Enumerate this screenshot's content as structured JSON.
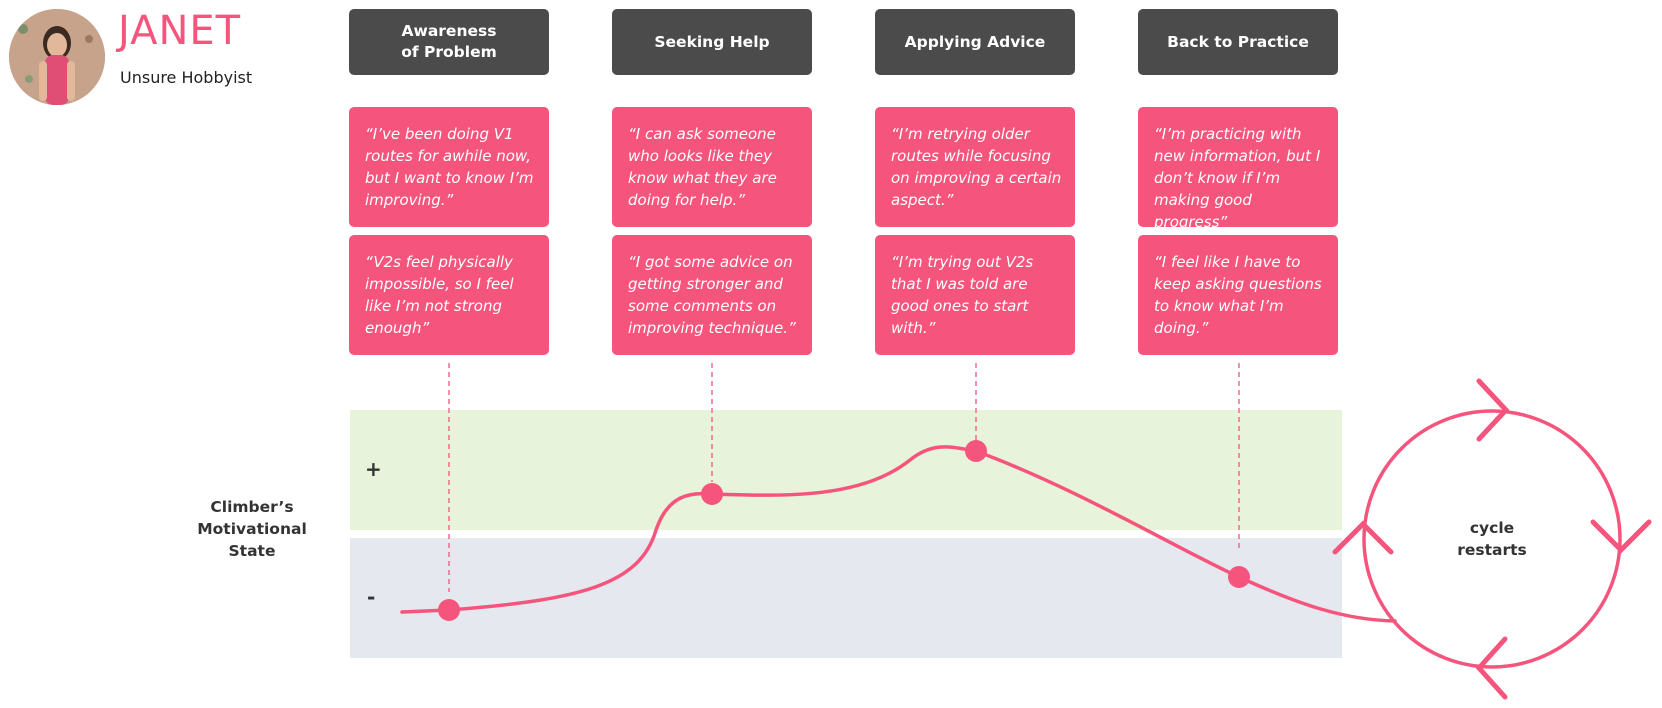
{
  "persona": {
    "name": "JANET",
    "role": "Unsure Hobbyist",
    "avatar_icon": "person-photo-icon"
  },
  "stages": [
    {
      "label": "Awareness\nof Problem"
    },
    {
      "label": "Seeking Help"
    },
    {
      "label": "Applying Advice"
    },
    {
      "label": "Back to Practice"
    }
  ],
  "quotes": [
    [
      "“I’ve been doing V1 routes for awhile now, but I want to know I’m improving.”",
      "“V2s feel physically impossible, so I feel like I’m not strong enough”"
    ],
    [
      "“I can ask someone who looks like they know what they are doing for help.”",
      "“I got some advice on getting stronger and some comments on improving technique.”"
    ],
    [
      "“I’m retrying older routes while focusing on improving a certain aspect.”",
      "“I’m trying out V2s that I was told are good ones to start with.”"
    ],
    [
      "“I’m practicing with new information, but I don’t know if I’m making good progress”",
      "“I feel like I have to keep asking questions to know what I’m doing.”"
    ]
  ],
  "chart": {
    "positive_symbol": "+",
    "negative_symbol": "-",
    "y_label": "Climber’s\nMotivational\nState",
    "cycle_label": "cycle\nrestarts"
  },
  "colors": {
    "accent": "#f5557c",
    "stage_bg": "#4b4b4b",
    "positive_band": "#e8f3dc",
    "negative_band": "#e6e8ef"
  }
}
